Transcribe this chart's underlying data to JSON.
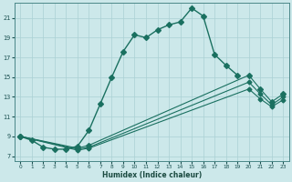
{
  "xlabel": "Humidex (Indice chaleur)",
  "bg_color": "#cce8ea",
  "grid_color": "#aad0d4",
  "line_color": "#1a7060",
  "xlim": [
    -0.5,
    23.5
  ],
  "ylim": [
    6.5,
    22.5
  ],
  "yticks": [
    7,
    9,
    11,
    13,
    15,
    17,
    19,
    21
  ],
  "xticks": [
    0,
    1,
    2,
    3,
    4,
    5,
    6,
    7,
    8,
    9,
    10,
    11,
    12,
    13,
    14,
    15,
    16,
    17,
    18,
    19,
    20,
    21,
    22,
    23
  ],
  "lines": [
    {
      "x": [
        0,
        1,
        2,
        3,
        4,
        5,
        6,
        7,
        8,
        9,
        10,
        11,
        12,
        13,
        14,
        15,
        16,
        17,
        18,
        19,
        20,
        21,
        22,
        23
      ],
      "y": [
        9.0,
        8.6,
        7.9,
        7.7,
        7.7,
        8.0,
        9.6,
        12.3,
        15.0,
        17.6,
        19.3,
        19.0,
        19.8,
        20.3,
        20.6,
        22.0,
        21.2,
        17.3,
        16.2,
        15.2,
        null,
        null,
        null,
        null
      ],
      "marker": "D",
      "markersize": 3.0,
      "linewidth": 1.0
    },
    {
      "x": [
        0,
        5,
        6,
        20,
        21,
        22,
        23
      ],
      "y": [
        9.0,
        7.8,
        8.1,
        15.2,
        13.8,
        12.5,
        13.3
      ],
      "marker": "D",
      "markersize": 3.0,
      "linewidth": 0.8
    },
    {
      "x": [
        0,
        5,
        6,
        20,
        21,
        22,
        23
      ],
      "y": [
        9.0,
        7.7,
        7.9,
        14.5,
        13.3,
        12.2,
        13.0
      ],
      "marker": "D",
      "markersize": 2.5,
      "linewidth": 0.8
    },
    {
      "x": [
        0,
        5,
        6,
        20,
        21,
        22,
        23
      ],
      "y": [
        9.0,
        7.6,
        7.8,
        13.8,
        12.8,
        12.0,
        12.7
      ],
      "marker": "D",
      "markersize": 2.5,
      "linewidth": 0.8
    }
  ]
}
